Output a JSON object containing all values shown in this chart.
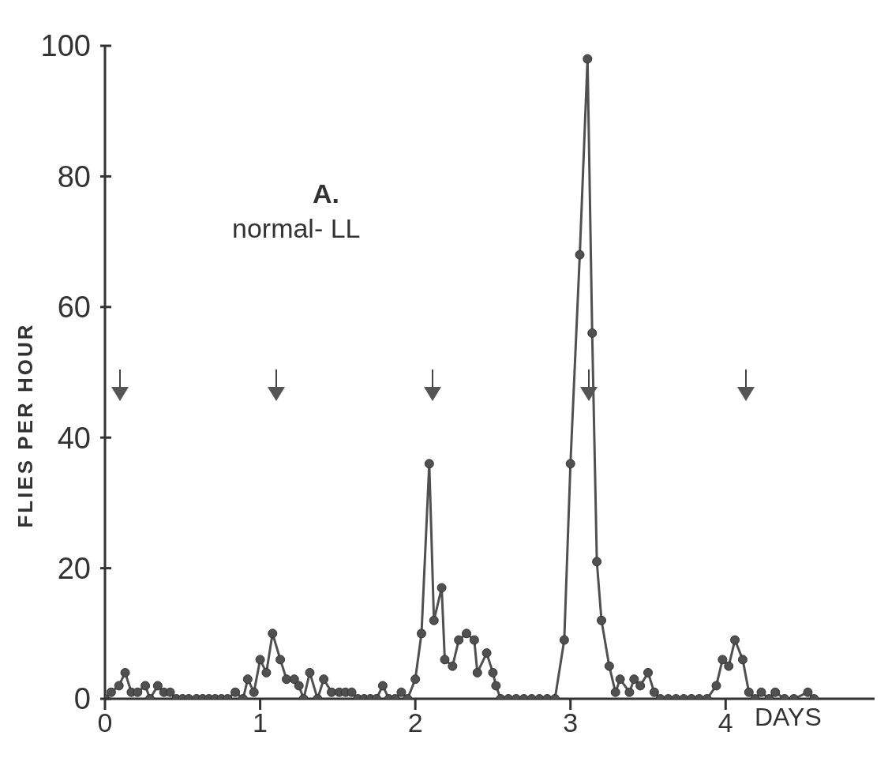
{
  "chart_data": {
    "type": "line",
    "ylabel": "FLIES PER HOUR",
    "xlabel": "DAYS",
    "annotations": [
      "A.",
      "normal- LL"
    ],
    "xlim": [
      0,
      4.96
    ],
    "xticks": [
      0,
      1,
      2,
      3,
      4
    ],
    "ylim": [
      0,
      100
    ],
    "yticks": [
      0,
      20,
      40,
      60,
      80,
      100
    ],
    "marker": "circle",
    "line_style": "solid",
    "series": [
      {
        "color": "#505050",
        "x": [
          0,
          0.04,
          0.09,
          0.13,
          0.17,
          0.21,
          0.26,
          0.29,
          0.34,
          0.38,
          0.42,
          0.46,
          0.5,
          0.54,
          0.59,
          0.63,
          0.67,
          0.71,
          0.75,
          0.79,
          0.84,
          0.89,
          0.92,
          0.96,
          1,
          1.04,
          1.08,
          1.13,
          1.17,
          1.22,
          1.25,
          1.28,
          1.32,
          1.37,
          1.41,
          1.46,
          1.51,
          1.55,
          1.59,
          1.63,
          1.67,
          1.71,
          1.75,
          1.79,
          1.83,
          1.87,
          1.91,
          1.95,
          2,
          2.04,
          2.09,
          2.12,
          2.17,
          2.19,
          2.24,
          2.28,
          2.33,
          2.38,
          2.4,
          2.46,
          2.5,
          2.52,
          2.55,
          2.6,
          2.65,
          2.7,
          2.75,
          2.8,
          2.85,
          2.9,
          2.96,
          3,
          3.06,
          3.11,
          3.14,
          3.17,
          3.2,
          3.25,
          3.29,
          3.32,
          3.38,
          3.41,
          3.45,
          3.5,
          3.54,
          3.58,
          3.63,
          3.68,
          3.73,
          3.78,
          3.83,
          3.88,
          3.94,
          3.98,
          4.02,
          4.06,
          4.11,
          4.15,
          4.19,
          4.23,
          4.28,
          4.32,
          4.38,
          4.44,
          4.53,
          4.57
        ],
        "values": [
          0,
          1,
          2,
          4,
          1,
          1,
          2,
          0,
          2,
          1,
          1,
          0,
          0,
          0,
          0,
          0,
          0,
          0,
          0,
          0,
          1,
          0,
          3,
          1,
          6,
          4,
          10,
          6,
          3,
          3,
          2,
          0,
          4,
          0,
          3,
          1,
          1,
          1,
          1,
          0,
          0,
          0,
          0,
          2,
          0,
          0,
          1,
          0,
          3,
          10,
          36,
          12,
          17,
          6,
          5,
          9,
          10,
          9,
          4,
          7,
          4,
          2,
          0,
          0,
          0,
          0,
          0,
          0,
          0,
          0,
          9,
          36,
          68,
          98,
          56,
          21,
          12,
          5,
          1,
          3,
          1,
          3,
          2,
          4,
          1,
          0,
          0,
          0,
          0,
          0,
          0,
          0,
          2,
          6,
          5,
          9,
          6,
          1,
          0,
          1,
          0,
          1,
          0,
          0,
          1,
          0
        ]
      }
    ]
  }
}
